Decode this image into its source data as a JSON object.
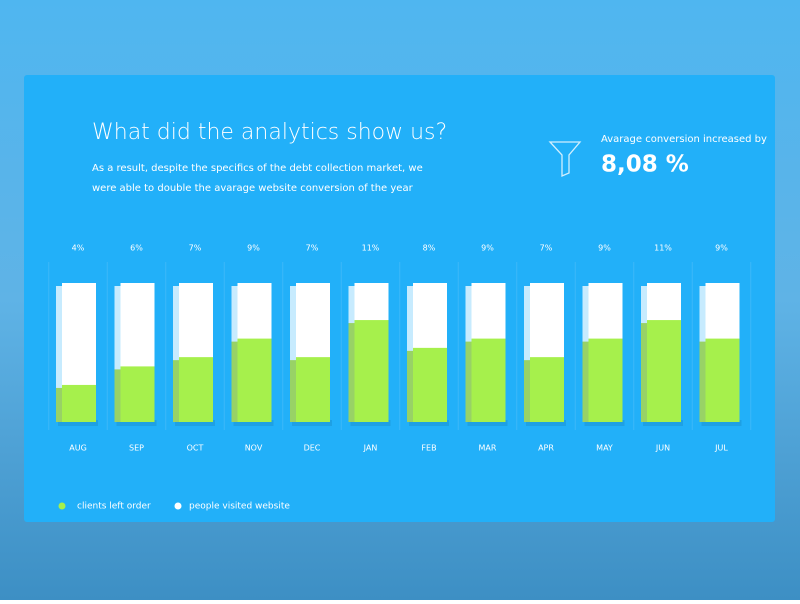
{
  "header": {
    "title": "What did the analytics show us?",
    "subtitle": [
      "As a result, despite the specifics of the debt collection market, we",
      "were able to double the avarage website conversion of the year"
    ],
    "kpi_label": "Avarage conversion increased by",
    "kpi_value": "8,08 %"
  },
  "chart_data": {
    "type": "bar",
    "categories": [
      "AUG",
      "SEP",
      "OCT",
      "NOV",
      "DEC",
      "JAN",
      "FEB",
      "MAR",
      "APR",
      "MAY",
      "JUN",
      "JUL"
    ],
    "ylim": [
      0,
      15
    ],
    "series": [
      {
        "name": "clients left order",
        "color": "#a6f04c",
        "values": [
          4,
          6,
          7,
          9,
          7,
          11,
          8,
          9,
          7,
          9,
          11,
          9
        ],
        "value_labels": [
          "4%",
          "6%",
          "7%",
          "9%",
          "7%",
          "11%",
          "8%",
          "9%",
          "7%",
          "9%",
          "11%",
          "9%"
        ]
      }
    ],
    "background_series": {
      "name": "people visited website",
      "color": "#ffffff"
    }
  }
}
